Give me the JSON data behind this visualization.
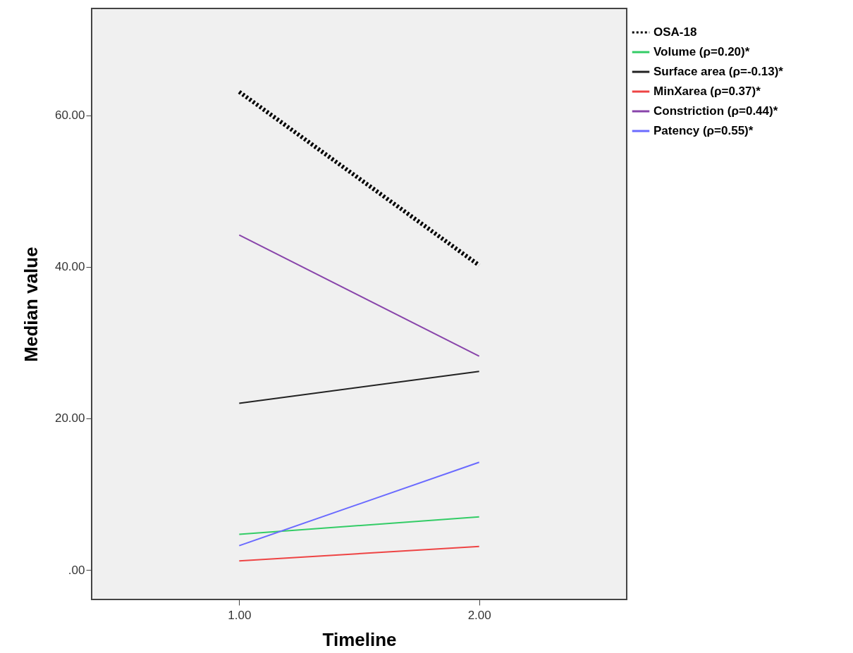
{
  "chart_data": {
    "type": "line",
    "xlabel": "Timeline",
    "ylabel": "Median value",
    "x": [
      1,
      2
    ],
    "xlim": [
      0.385,
      2.615
    ],
    "xticks": [
      {
        "value": 1,
        "label": "1.00"
      },
      {
        "value": 2,
        "label": "2.00"
      }
    ],
    "ylim": [
      -3.9,
      74.1
    ],
    "yticks": [
      {
        "value": 0,
        "label": ".00"
      },
      {
        "value": 20,
        "label": "20.00"
      },
      {
        "value": 40,
        "label": "40.00"
      },
      {
        "value": 60,
        "label": "60.00"
      }
    ],
    "grid": false,
    "legend": "top right",
    "marker": "none",
    "series": [
      {
        "name": "OSA-18",
        "color": "#000000",
        "line_style": "dotted",
        "values": [
          63.1,
          40.2
        ]
      },
      {
        "name": "Volume (ρ=0.20)*",
        "color": "#33cc66",
        "line_style": "solid",
        "values": [
          4.7,
          7.0
        ]
      },
      {
        "name": "Surface area (ρ=-0.13)*",
        "color": "#222222",
        "line_style": "solid",
        "values": [
          22.0,
          26.2
        ]
      },
      {
        "name": "MinXarea (ρ=0.37)*",
        "color": "#ee4444",
        "line_style": "solid",
        "values": [
          1.2,
          3.1
        ]
      },
      {
        "name": "Constriction (ρ=0.44)*",
        "color": "#8844aa",
        "line_style": "solid",
        "values": [
          44.2,
          28.2
        ]
      },
      {
        "name": "Patency (ρ=0.55)*",
        "color": "#6a6aff",
        "line_style": "solid",
        "values": [
          3.2,
          14.2
        ]
      }
    ]
  }
}
